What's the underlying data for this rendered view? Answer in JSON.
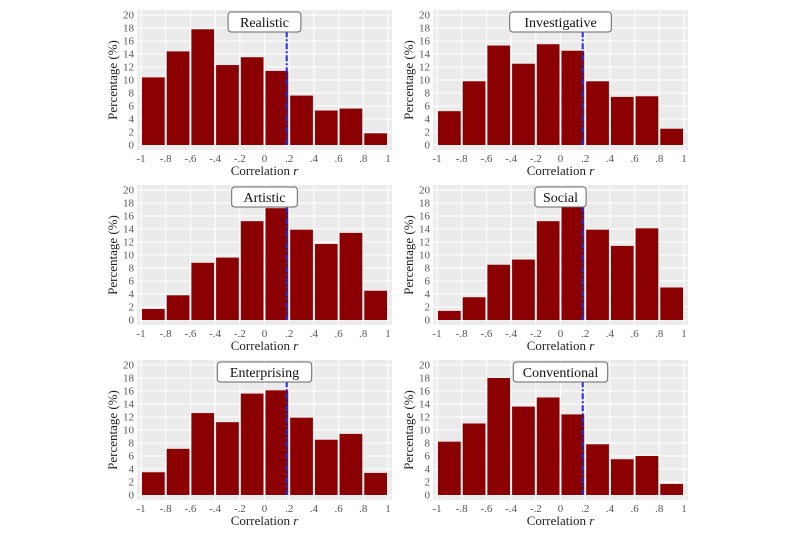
{
  "chart_data": [
    {
      "type": "bar",
      "title": "Realistic",
      "xlabel": "Correlation r",
      "ylabel": "Percentage (%)",
      "xlim": [
        -1,
        1
      ],
      "ylim": [
        0,
        20
      ],
      "grid": true,
      "xticks": [
        "-1",
        "-.8",
        "-.6",
        "-.4",
        "-.2",
        "0",
        ".2",
        ".4",
        ".6",
        ".8",
        "1"
      ],
      "yticks": [
        "0",
        "2",
        "4",
        "6",
        "8",
        "10",
        "12",
        "14",
        "16",
        "18",
        "20"
      ],
      "values": [
        10.4,
        14.4,
        17.8,
        12.3,
        13.5,
        11.4,
        7.6,
        5.3,
        5.6,
        1.8
      ],
      "reference_line": 0.18
    },
    {
      "type": "bar",
      "title": "Investigative",
      "xlabel": "Correlation r",
      "ylabel": "Percentage (%)",
      "xlim": [
        -1,
        1
      ],
      "ylim": [
        0,
        20
      ],
      "grid": true,
      "xticks": [
        "-1",
        "-.8",
        "-.6",
        "-.4",
        "-.2",
        "0",
        ".2",
        ".4",
        ".6",
        ".8",
        "1"
      ],
      "yticks": [
        "0",
        "2",
        "4",
        "6",
        "8",
        "10",
        "12",
        "14",
        "16",
        "18",
        "20"
      ],
      "values": [
        5.2,
        9.8,
        15.3,
        12.5,
        15.5,
        14.5,
        9.8,
        7.4,
        7.5,
        2.5
      ],
      "reference_line": 0.18
    },
    {
      "type": "bar",
      "title": "Artistic",
      "xlabel": "Correlation r",
      "ylabel": "Percentage (%)",
      "xlim": [
        -1,
        1
      ],
      "ylim": [
        0,
        20
      ],
      "grid": true,
      "xticks": [
        "-1",
        "-.8",
        "-.6",
        "-.4",
        "-.2",
        "0",
        ".2",
        ".4",
        ".6",
        ".8",
        "1"
      ],
      "yticks": [
        "0",
        "2",
        "4",
        "6",
        "8",
        "10",
        "12",
        "14",
        "16",
        "18",
        "20"
      ],
      "values": [
        1.7,
        3.8,
        8.8,
        9.6,
        15.2,
        17.2,
        13.9,
        11.7,
        13.4,
        4.5
      ],
      "reference_line": 0.18
    },
    {
      "type": "bar",
      "title": "Social",
      "xlabel": "Correlation r",
      "ylabel": "Percentage (%)",
      "xlim": [
        -1,
        1
      ],
      "ylim": [
        0,
        20
      ],
      "grid": true,
      "xticks": [
        "-1",
        "-.8",
        "-.6",
        "-.4",
        "-.2",
        "0",
        ".2",
        ".4",
        ".6",
        ".8",
        "1"
      ],
      "yticks": [
        "0",
        "2",
        "4",
        "6",
        "8",
        "10",
        "12",
        "14",
        "16",
        "18",
        "20"
      ],
      "values": [
        1.4,
        3.5,
        8.5,
        9.3,
        15.2,
        17.4,
        13.9,
        11.4,
        14.1,
        5.0
      ],
      "reference_line": 0.18
    },
    {
      "type": "bar",
      "title": "Enterprising",
      "xlabel": "Correlation r",
      "ylabel": "Percentage (%)",
      "xlim": [
        -1,
        1
      ],
      "ylim": [
        0,
        20
      ],
      "grid": true,
      "xticks": [
        "-1",
        "-.8",
        "-.6",
        "-.4",
        "-.2",
        "0",
        ".2",
        ".4",
        ".6",
        ".8",
        "1"
      ],
      "yticks": [
        "0",
        "2",
        "4",
        "6",
        "8",
        "10",
        "12",
        "14",
        "16",
        "18",
        "20"
      ],
      "values": [
        3.5,
        7.1,
        12.6,
        11.2,
        15.6,
        16.1,
        11.9,
        8.5,
        9.4,
        3.4
      ],
      "reference_line": 0.18
    },
    {
      "type": "bar",
      "title": "Conventional",
      "xlabel": "Correlation r",
      "ylabel": "Percentage (%)",
      "xlim": [
        -1,
        1
      ],
      "ylim": [
        0,
        20
      ],
      "grid": true,
      "xticks": [
        "-1",
        "-.8",
        "-.6",
        "-.4",
        "-.2",
        "0",
        ".2",
        ".4",
        ".6",
        ".8",
        "1"
      ],
      "yticks": [
        "0",
        "2",
        "4",
        "6",
        "8",
        "10",
        "12",
        "14",
        "16",
        "18",
        "20"
      ],
      "values": [
        8.2,
        11.0,
        18.0,
        13.6,
        15.0,
        12.4,
        7.8,
        5.5,
        6.0,
        1.7
      ],
      "reference_line": 0.18
    }
  ],
  "colors": {
    "bar": "#8b0000",
    "panel": "#ebebeb",
    "grid": "#ffffff",
    "reference_line": "#2b2bd1"
  }
}
